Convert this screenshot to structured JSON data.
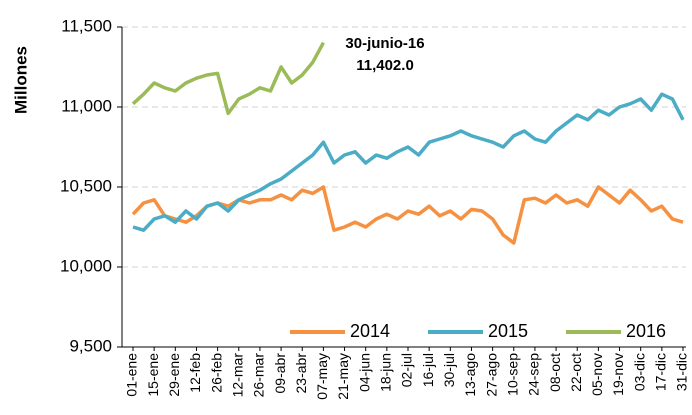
{
  "chart_data": {
    "type": "line",
    "y_label": "Millones",
    "annotation": {
      "title": "30-junio-16",
      "value_label": "11,402.0"
    },
    "categories": [
      "01-ene",
      null,
      "15-ene",
      null,
      "29-ene",
      null,
      "12-feb",
      null,
      "26-feb",
      null,
      "12-mar",
      null,
      "26-mar",
      null,
      "09-abr",
      null,
      "23-abr",
      null,
      "07-may",
      null,
      "21-may",
      null,
      "04-jun",
      null,
      "18-jun",
      null,
      "02-jul",
      null,
      "16-jul",
      null,
      "30-jul",
      null,
      "13-ago",
      null,
      "27-ago",
      null,
      "10-sep",
      null,
      "24-sep",
      null,
      "08-oct",
      null,
      "22-oct",
      null,
      "05-nov",
      null,
      "19-nov",
      null,
      "03-dic",
      null,
      "17-dic",
      null,
      "31-dic"
    ],
    "series": [
      {
        "name": "2014",
        "color": "#f59140",
        "values": [
          10330,
          10400,
          10420,
          10320,
          10300,
          10280,
          10320,
          10380,
          10400,
          10380,
          10420,
          10400,
          10420,
          10420,
          10450,
          10420,
          10480,
          10460,
          10500,
          10230,
          10250,
          10280,
          10250,
          10300,
          10330,
          10300,
          10350,
          10330,
          10380,
          10320,
          10350,
          10300,
          10360,
          10350,
          10300,
          10200,
          10150,
          10420,
          10430,
          10400,
          10450,
          10400,
          10420,
          10380,
          10500,
          10450,
          10400,
          10480,
          10420,
          10350,
          10380,
          10300,
          10280
        ]
      },
      {
        "name": "2015",
        "color": "#4bacc6",
        "values": [
          10250,
          10230,
          10300,
          10320,
          10280,
          10350,
          10300,
          10380,
          10400,
          10350,
          10420,
          10450,
          10480,
          10520,
          10550,
          10600,
          10650,
          10700,
          10780,
          10650,
          10700,
          10720,
          10650,
          10700,
          10680,
          10720,
          10750,
          10700,
          10780,
          10800,
          10820,
          10850,
          10820,
          10800,
          10780,
          10750,
          10820,
          10850,
          10800,
          10780,
          10850,
          10900,
          10950,
          10920,
          10980,
          10950,
          11000,
          11020,
          11050,
          10980,
          11080,
          11050,
          10920
        ]
      },
      {
        "name": "2016",
        "color": "#9bbb59",
        "values": [
          11020,
          11080,
          11150,
          11120,
          11100,
          11150,
          11180,
          11200,
          11210,
          10960,
          11050,
          11080,
          11120,
          11100,
          11250,
          11150,
          11200,
          11280,
          11402,
          null,
          null,
          null,
          null,
          null,
          null,
          null,
          null,
          null,
          null,
          null,
          null,
          null,
          null,
          null,
          null,
          null,
          null,
          null,
          null,
          null,
          null,
          null,
          null,
          null,
          null,
          null,
          null,
          null,
          null,
          null,
          null,
          null,
          null
        ]
      }
    ],
    "ylim": [
      9500,
      11500
    ],
    "yticks": [
      {
        "value": 9500,
        "label": "9,500"
      },
      {
        "value": 10000,
        "label": "10,000"
      },
      {
        "value": 10500,
        "label": "10,500"
      },
      {
        "value": 11000,
        "label": "11,000"
      },
      {
        "value": 11500,
        "label": "11,500"
      }
    ],
    "grid": true,
    "legend": "bottom-right"
  }
}
